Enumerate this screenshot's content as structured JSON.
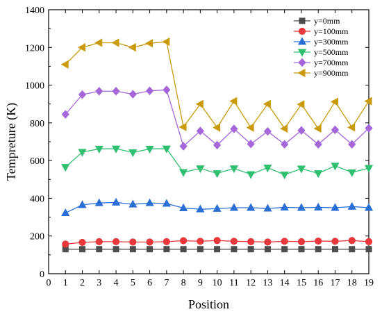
{
  "chart_data": {
    "type": "line",
    "title": "",
    "xlabel": "Position",
    "ylabel": "Tempreture (K)",
    "xlim": [
      0,
      19
    ],
    "ylim": [
      0,
      1400
    ],
    "xticks": [
      "0",
      "1",
      "2",
      "3",
      "4",
      "5",
      "6",
      "7",
      "8",
      "9",
      "10",
      "11",
      "12",
      "13",
      "14",
      "15",
      "16",
      "17",
      "18",
      "19"
    ],
    "yticks": [
      "0",
      "200",
      "400",
      "600",
      "800",
      "1000",
      "1200",
      "1400"
    ],
    "legend_position": "top-right",
    "grid": false,
    "x": [
      1,
      2,
      3,
      4,
      5,
      6,
      7,
      8,
      9,
      10,
      11,
      12,
      13,
      14,
      15,
      16,
      17,
      18,
      19
    ],
    "series": [
      {
        "name": "y=0mm",
        "color": "#4d4d4d",
        "marker": "square",
        "values": [
          130,
          130,
          130,
          130,
          130,
          130,
          130,
          130,
          130,
          130,
          130,
          130,
          130,
          130,
          130,
          130,
          130,
          130,
          130
        ]
      },
      {
        "name": "y=100mm",
        "color": "#e8383b",
        "marker": "circle",
        "values": [
          157,
          166,
          170,
          170,
          168,
          168,
          170,
          175,
          172,
          176,
          172,
          170,
          168,
          172,
          170,
          173,
          172,
          176,
          170
        ]
      },
      {
        "name": "y=300mm",
        "color": "#2b6fd6",
        "marker": "triangle-up",
        "values": [
          322,
          365,
          375,
          378,
          368,
          375,
          372,
          348,
          342,
          345,
          350,
          350,
          346,
          352,
          350,
          352,
          350,
          356,
          350
        ]
      },
      {
        "name": "y=500mm",
        "color": "#2fbf71",
        "marker": "triangle-down",
        "values": [
          565,
          645,
          662,
          663,
          643,
          662,
          663,
          538,
          558,
          532,
          558,
          527,
          562,
          525,
          557,
          532,
          572,
          537,
          560
        ]
      },
      {
        "name": "y=700mm",
        "color": "#a466d9",
        "marker": "diamond",
        "values": [
          845,
          950,
          968,
          968,
          952,
          970,
          975,
          676,
          757,
          682,
          768,
          688,
          755,
          686,
          760,
          686,
          763,
          686,
          772
        ]
      },
      {
        "name": "y=900mm",
        "color": "#c99a0a",
        "marker": "triangle-left",
        "values": [
          1110,
          1200,
          1225,
          1225,
          1200,
          1222,
          1230,
          778,
          900,
          775,
          915,
          775,
          900,
          770,
          898,
          770,
          912,
          776,
          915
        ]
      }
    ]
  }
}
